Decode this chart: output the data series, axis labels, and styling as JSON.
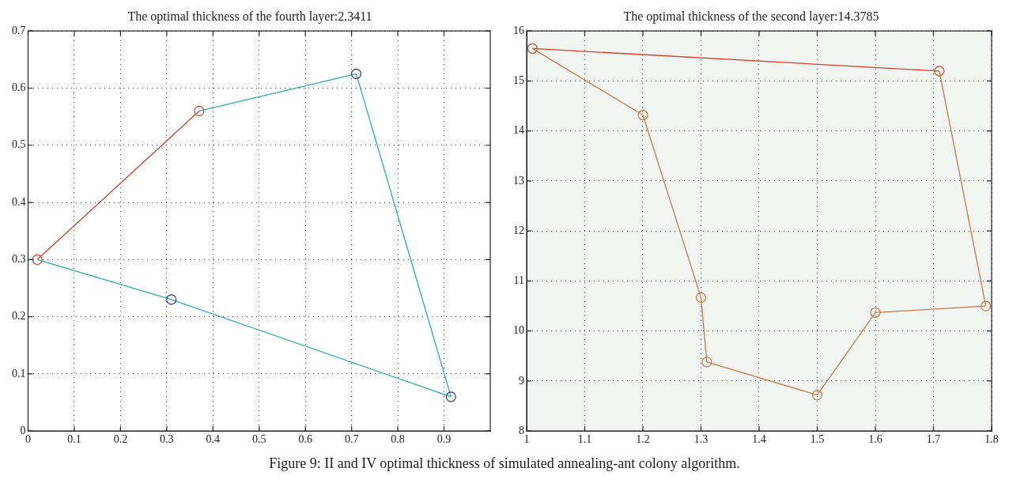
{
  "chart_data": [
    {
      "type": "line",
      "title": "The optimal thickness of the fourth layer:2.3411",
      "xlim": [
        0,
        1
      ],
      "xticks": [
        0,
        0.1,
        0.2,
        0.3,
        0.4,
        0.5,
        0.6,
        0.7,
        0.8,
        0.9
      ],
      "ylim": [
        0,
        0.7
      ],
      "yticks": [
        0,
        0.1,
        0.2,
        0.3,
        0.4,
        0.5,
        0.6,
        0.7
      ],
      "grid": true,
      "marker": "circle",
      "line_style": "solid",
      "series": [
        {
          "type": "scatter",
          "color": "#2e2a8c",
          "x": [
            0.71,
            0.915,
            0.31
          ],
          "values": [
            0.625,
            0.06,
            0.23
          ]
        },
        {
          "type": "line",
          "color": "#2aaba8",
          "marker": "none",
          "x": [
            0.37,
            0.71,
            0.915,
            0.31,
            0.02
          ],
          "values": [
            0.56,
            0.625,
            0.06,
            0.23,
            0.3
          ]
        },
        {
          "type": "line",
          "color": "#d2402c",
          "x": [
            0.02,
            0.37
          ],
          "values": [
            0.3,
            0.56
          ]
        }
      ],
      "annotations": [
        "Figure 9: II and IV optimal thickness of simulated annealing-ant colony algorithm."
      ]
    },
    {
      "type": "line",
      "title": "The optimal thickness of the second layer:14.3785",
      "xlim": [
        1,
        1.8
      ],
      "xticks": [
        1,
        1.1,
        1.2,
        1.3,
        1.4,
        1.5,
        1.6,
        1.7,
        1.8
      ],
      "ylim": [
        8,
        16
      ],
      "yticks": [
        8,
        9,
        10,
        11,
        12,
        13,
        14,
        15,
        16
      ],
      "grid": true,
      "marker": "circle",
      "line_style": "solid",
      "series": [
        {
          "type": "line",
          "color": "#c07a50",
          "x": [
            1.01,
            1.2,
            1.3,
            1.31,
            1.5,
            1.6,
            1.79,
            1.71
          ],
          "values": [
            15.65,
            14.32,
            10.67,
            9.38,
            8.72,
            10.37,
            10.5,
            15.2
          ]
        },
        {
          "type": "line",
          "color": "#d2402c",
          "x": [
            1.01,
            1.71
          ],
          "values": [
            15.65,
            15.2
          ]
        }
      ]
    }
  ]
}
